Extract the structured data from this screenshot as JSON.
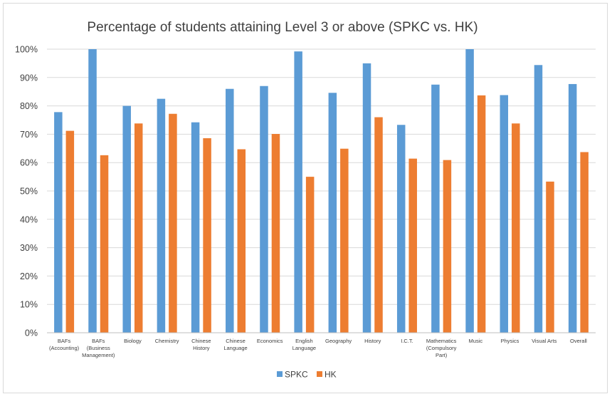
{
  "chart_data": {
    "type": "bar",
    "title": "Percentage of students attaining Level 3 or above (SPKC vs. HK)",
    "categories": [
      [
        "BAFs",
        "(Accounting)"
      ],
      [
        "BAFs",
        "(Business",
        "Management)"
      ],
      [
        "Biology"
      ],
      [
        "Chemistry"
      ],
      [
        "Chinese",
        "History"
      ],
      [
        "Chinese",
        "Language"
      ],
      [
        "Economics"
      ],
      [
        "English",
        "Language"
      ],
      [
        "Geography"
      ],
      [
        "History"
      ],
      [
        "I.C.T."
      ],
      [
        "Mathematics",
        "(Compulsory",
        "Part)"
      ],
      [
        "Music"
      ],
      [
        "Physics"
      ],
      [
        "Visual Arts"
      ],
      [
        "Overall"
      ]
    ],
    "series": [
      {
        "name": "SPKC",
        "color": "#5b9bd5",
        "values": [
          77.8,
          100,
          80,
          82.5,
          74.2,
          86,
          87,
          99.2,
          84.6,
          95,
          73.3,
          87.5,
          100,
          83.8,
          94.4,
          87.7
        ]
      },
      {
        "name": "HK",
        "color": "#ed7d31",
        "values": [
          71.2,
          62.6,
          73.8,
          77.2,
          68.6,
          64.7,
          70.1,
          55,
          64.9,
          76,
          61.4,
          60.9,
          83.7,
          73.8,
          53.3,
          63.7
        ]
      }
    ],
    "yticks": [
      "0%",
      "10%",
      "20%",
      "30%",
      "40%",
      "50%",
      "60%",
      "70%",
      "80%",
      "90%",
      "100%"
    ],
    "ylim": [
      0,
      100
    ],
    "grid": true,
    "legend_position": "bottom"
  }
}
